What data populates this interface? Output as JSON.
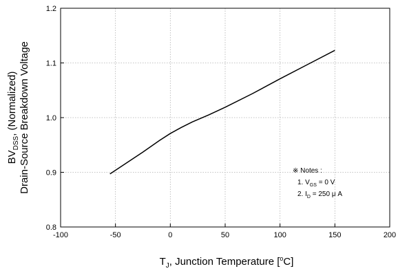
{
  "chart_data": {
    "type": "line",
    "title": "",
    "xlabel": {
      "main": "T",
      "sub": "J",
      "rest": ", Junction Temperature [",
      "sup": "o",
      "end": "C]"
    },
    "ylabel": {
      "line1": {
        "main": "BV",
        "sub": "DSS",
        "rest": ", (Normalized)"
      },
      "line2": "Drain-Source Breakdown Voltage"
    },
    "xlim": [
      -100,
      200
    ],
    "ylim": [
      0.8,
      1.2
    ],
    "xticks": [
      -100,
      -50,
      0,
      50,
      100,
      150,
      200
    ],
    "xtick_labels": [
      "-100",
      "-50",
      "0",
      "50",
      "100",
      "150",
      "200"
    ],
    "yticks": [
      0.8,
      0.9,
      1.0,
      1.1,
      1.2
    ],
    "ytick_labels": [
      "0.8",
      "0.9",
      "1.0",
      "1.1",
      "1.2"
    ],
    "grid": true,
    "series": [
      {
        "x": [
          -55,
          -40,
          -25,
          -10,
          0,
          10,
          20,
          35,
          50,
          75,
          100,
          125,
          150
        ],
        "y": [
          0.897,
          0.917,
          0.937,
          0.958,
          0.971,
          0.982,
          0.992,
          1.005,
          1.019,
          1.044,
          1.071,
          1.097,
          1.123
        ]
      }
    ],
    "annotation": {
      "header": "※ Notes :",
      "note1": {
        "prefix": "1. V",
        "sub": "GS",
        "rest": " = 0 V"
      },
      "note2": {
        "prefix": "2. I",
        "sub": "D",
        "rest": " = 250 μ A"
      }
    }
  }
}
